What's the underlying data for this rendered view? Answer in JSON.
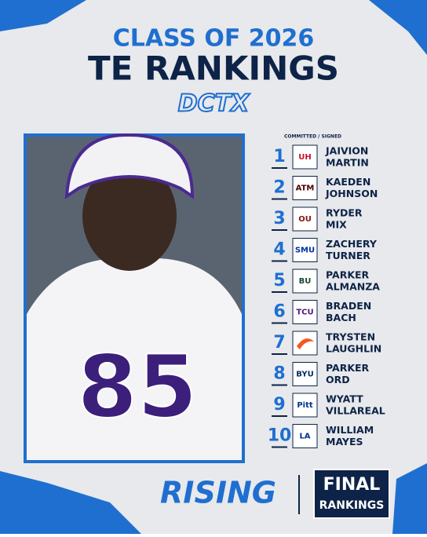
{
  "header": {
    "title_line1": "CLASS OF 2026",
    "title_line2": "TE RANKINGS",
    "brand": "DCTX"
  },
  "photo": {
    "jersey_number": "85"
  },
  "list": {
    "column_label": "COMMITTED / SIGNED",
    "rankings": [
      {
        "rank": 1,
        "first": "JAIVION",
        "last": "MARTIN",
        "logo": "UH",
        "logo_color": "#c8102e"
      },
      {
        "rank": 2,
        "first": "KAEDEN",
        "last": "JOHNSON",
        "logo": "ATM",
        "logo_color": "#500000"
      },
      {
        "rank": 3,
        "first": "RYDER",
        "last": "MIX",
        "logo": "OU",
        "logo_color": "#841617"
      },
      {
        "rank": 4,
        "first": "ZACHERY",
        "last": "TURNER",
        "logo": "SMU",
        "logo_color": "#0033a0"
      },
      {
        "rank": 5,
        "first": "PARKER",
        "last": "ALMANZA",
        "logo": "BU",
        "logo_color": "#154734"
      },
      {
        "rank": 6,
        "first": "BRADEN",
        "last": "BACH",
        "logo": "TCU",
        "logo_color": "#4d1979"
      },
      {
        "rank": 7,
        "first": "TRYSTEN",
        "last": "LAUGHLIN",
        "logo": null,
        "logo_color": "#f15a22"
      },
      {
        "rank": 8,
        "first": "PARKER",
        "last": "ORD",
        "logo": "BYU",
        "logo_color": "#002e5d"
      },
      {
        "rank": 9,
        "first": "WYATT",
        "last": "VILLAREAL",
        "logo": "Pitt",
        "logo_color": "#003594"
      },
      {
        "rank": 10,
        "first": "WILLIAM",
        "last": "MAYES",
        "logo": "LA",
        "logo_color": "#002f8b"
      }
    ]
  },
  "footer": {
    "left": "RISING",
    "box_line1": "FINAL",
    "box_line2": "RANKINGS"
  }
}
